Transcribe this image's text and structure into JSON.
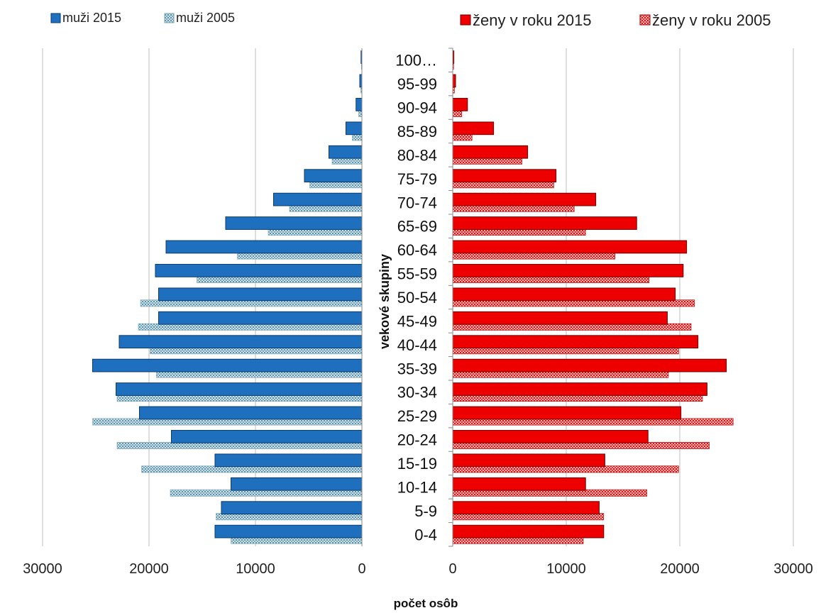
{
  "chart_data": {
    "type": "bar",
    "orientation": "horizontal",
    "layout": "population-pyramid",
    "categories": [
      "0-4",
      "5-9",
      "10-14",
      "15-19",
      "20-24",
      "25-29",
      "30-34",
      "35-39",
      "40-44",
      "45-49",
      "50-54",
      "55-59",
      "60-64",
      "65-69",
      "70-74",
      "75-79",
      "80-84",
      "85-89",
      "90-94",
      "95-99",
      "100…"
    ],
    "ylabel": "vekové skupiny",
    "xlabel": "počet osôb",
    "panels": [
      {
        "side": "left",
        "xlim": [
          30000,
          0
        ],
        "xticks": [
          "30000",
          "20000",
          "10000",
          "0"
        ],
        "xtick_values": [
          30000,
          20000,
          10000,
          0
        ],
        "series": [
          {
            "name": "muži 2015",
            "color": "#1f6fbf",
            "pattern": "solid",
            "values": [
              13800,
              13200,
              12300,
              13800,
              17900,
              20900,
              23100,
              25300,
              22800,
              19100,
              19100,
              19400,
              18400,
              12800,
              8300,
              5400,
              3100,
              1500,
              550,
              200,
              80
            ]
          },
          {
            "name": "muži 2005",
            "color": "#a9cbd9",
            "pattern": "dotted",
            "values": [
              12300,
              13700,
              18000,
              20700,
              23000,
              25300,
              23000,
              19300,
              19900,
              21000,
              20800,
              15500,
              11700,
              8800,
              6800,
              4900,
              2800,
              900,
              300,
              100,
              50
            ]
          }
        ]
      },
      {
        "side": "right",
        "xlim": [
          0,
          30000
        ],
        "xticks": [
          "0",
          "10000",
          "20000",
          "30000"
        ],
        "xtick_values": [
          0,
          10000,
          20000,
          30000
        ],
        "series": [
          {
            "name": "ženy v roku 2015",
            "color": "#ee0000",
            "pattern": "solid",
            "values": [
              13300,
              12900,
              11700,
              13400,
              17200,
              20100,
              22400,
              24100,
              21600,
              18900,
              19600,
              20300,
              20600,
              16200,
              12600,
              9100,
              6600,
              3600,
              1300,
              250,
              100
            ]
          },
          {
            "name": "ženy v roku 2005",
            "color": "#ee4444",
            "pattern": "dotted",
            "values": [
              11500,
              13300,
              17100,
              19900,
              22600,
              24700,
              22000,
              19000,
              19900,
              21000,
              21300,
              17300,
              14300,
              11700,
              10700,
              8900,
              6100,
              1700,
              800,
              150,
              80
            ]
          }
        ]
      }
    ]
  }
}
